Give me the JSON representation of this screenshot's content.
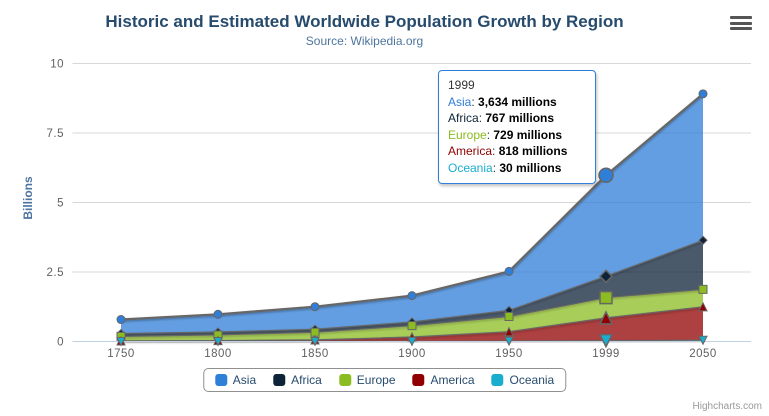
{
  "chart_data": {
    "type": "area",
    "stacking": "normal",
    "title": "Historic and Estimated Worldwide Population Growth by Region",
    "subtitle": "Source: Wikipedia.org",
    "categories": [
      "1750",
      "1800",
      "1850",
      "1900",
      "1950",
      "1999",
      "2050"
    ],
    "series": [
      {
        "name": "Asia",
        "color": "#2f7ed8",
        "marker": "circle",
        "values": [
          502,
          635,
          809,
          947,
          1402,
          3634,
          5268
        ]
      },
      {
        "name": "Africa",
        "color": "#0d233a",
        "marker": "diamond",
        "values": [
          106,
          107,
          111,
          133,
          221,
          767,
          1766
        ]
      },
      {
        "name": "Europe",
        "color": "#8bbc21",
        "marker": "square",
        "values": [
          163,
          203,
          276,
          408,
          547,
          729,
          628
        ]
      },
      {
        "name": "America",
        "color": "#910000",
        "marker": "triangle",
        "values": [
          18,
          31,
          54,
          156,
          339,
          818,
          1201
        ]
      },
      {
        "name": "Oceania",
        "color": "#1aadce",
        "marker": "triangle-down",
        "values": [
          2,
          2,
          2,
          6,
          13,
          30,
          46
        ]
      }
    ],
    "values_unit": "millions",
    "xlabel": "",
    "ylabel": "Billions",
    "ylim": [
      0,
      10
    ],
    "yticks": [
      0,
      2.5,
      5,
      7.5,
      10
    ],
    "grid": true,
    "legend_position": "bottom",
    "fill_opacity": 0.75,
    "line_color": "#666666",
    "axis_line_color": "#c0d0e0",
    "grid_color": "#d8d8d8",
    "hover_category_index": 5
  },
  "tooltip": {
    "title": "1999",
    "rows": [
      {
        "series": "Asia",
        "value": "3,634 millions"
      },
      {
        "series": "Africa",
        "value": "767 millions"
      },
      {
        "series": "Europe",
        "value": "729 millions"
      },
      {
        "series": "America",
        "value": "818 millions"
      },
      {
        "series": "Oceania",
        "value": "30 millions"
      }
    ]
  },
  "credit": "Highcharts.com"
}
